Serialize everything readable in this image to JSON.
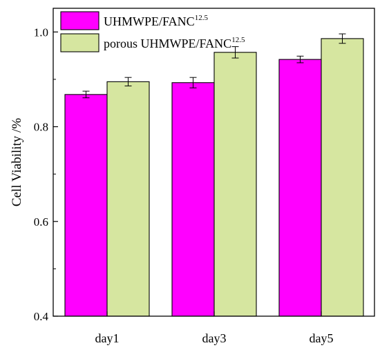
{
  "chart_data": {
    "type": "bar",
    "ylabel": "Cell Viability /%",
    "xlabel": "",
    "ylim": [
      0.4,
      1.05
    ],
    "yticks": [
      0.4,
      0.6,
      0.8,
      1.0
    ],
    "ytick_labels": [
      "0.4",
      "0.6",
      "0.8",
      "1.0"
    ],
    "categories": [
      "day1",
      "day3",
      "day5"
    ],
    "grid": false,
    "legend_position": "top-left",
    "series": [
      {
        "name": "UHMWPE/FANC",
        "name_superscript": "12.5",
        "color": "#ff00ff",
        "values": [
          0.868,
          0.893,
          0.942
        ],
        "errors": [
          0.007,
          0.011,
          0.007
        ]
      },
      {
        "name": "porous UHMWPE/FANC",
        "name_superscript": "12.5",
        "color": "#d6e6a0",
        "values": [
          0.895,
          0.957,
          0.986
        ],
        "errors": [
          0.009,
          0.012,
          0.01
        ]
      }
    ]
  }
}
